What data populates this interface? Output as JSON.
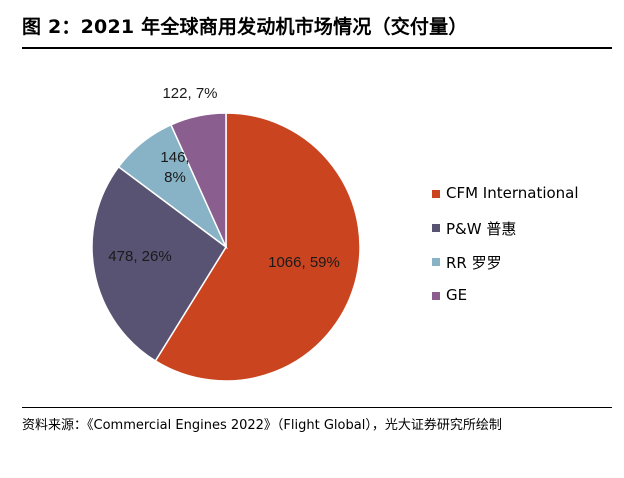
{
  "title": "图 2：2021 年全球商用发动机市场情况（交付量）",
  "source": "资料来源：《Commercial Engines 2022》（Flight Global），光大证券研究所绘制",
  "chart_data": {
    "type": "pie",
    "title": "图 2：2021 年全球商用发动机市场情况（交付量）",
    "series": [
      {
        "name": "CFM International",
        "value": 1066,
        "percent": "59%",
        "label": "1066, 59%",
        "color": "#c9441f"
      },
      {
        "name": "P&W 普惠",
        "value": 478,
        "percent": "26%",
        "label": "478, 26%",
        "color": "#585273"
      },
      {
        "name": "RR 罗罗",
        "value": 146,
        "percent": "8%",
        "label_lines": [
          "146,",
          "8%"
        ],
        "color": "#88b3c7"
      },
      {
        "name": "GE",
        "value": 122,
        "percent": "7%",
        "label": "122, 7%",
        "color": "#8a5f8f"
      }
    ],
    "legend_position": "right"
  }
}
